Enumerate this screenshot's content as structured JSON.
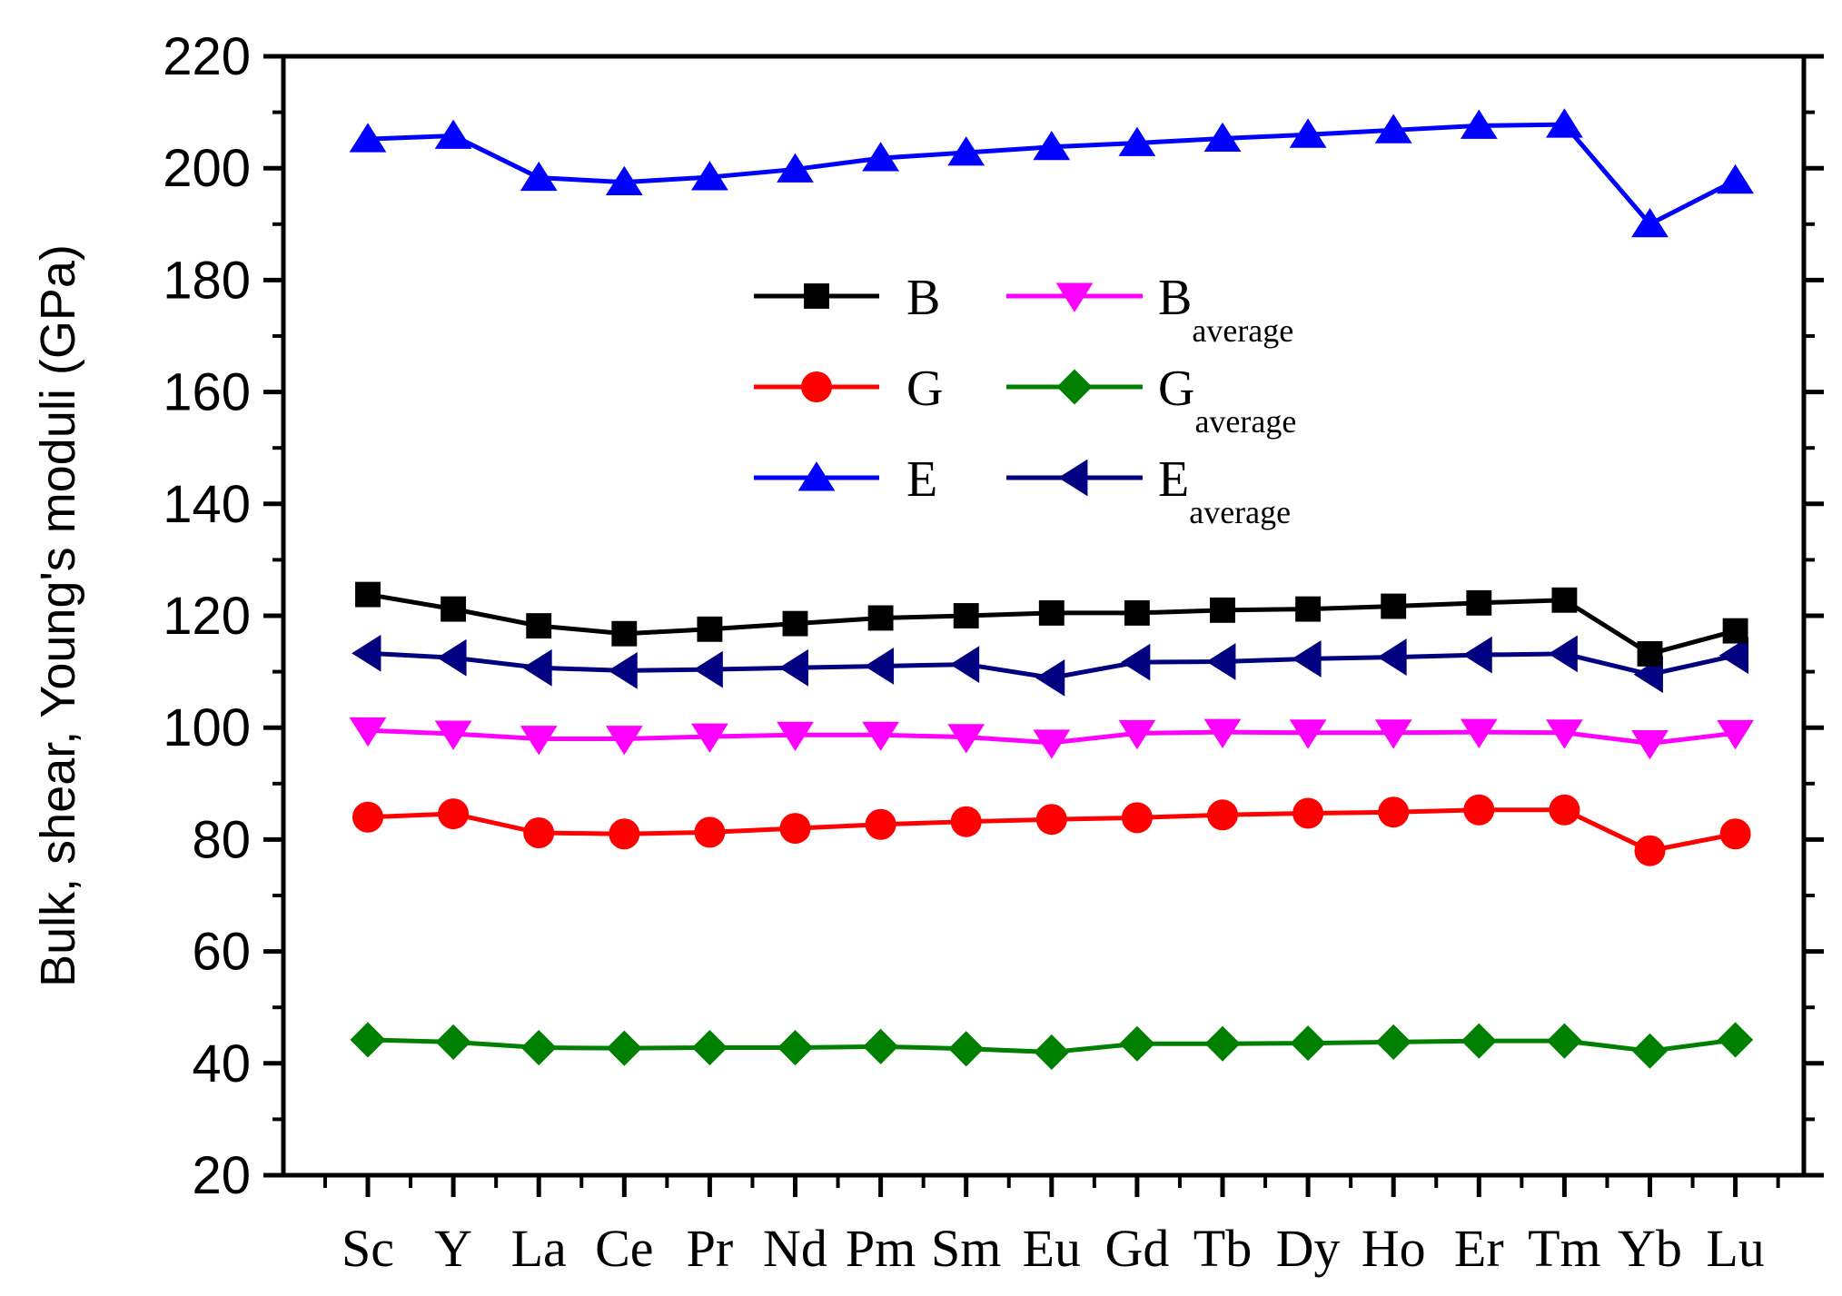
{
  "chart_data": {
    "type": "line",
    "title": "",
    "xlabel": "",
    "ylabel": "Bulk, shear, Young's moduli (GPa)",
    "ylim": [
      20,
      220
    ],
    "yticks": [
      20,
      40,
      60,
      80,
      100,
      120,
      140,
      160,
      180,
      200,
      220
    ],
    "categories": [
      "Sc",
      "Y",
      "La",
      "Ce",
      "Pr",
      "Nd",
      "Pm",
      "Sm",
      "Eu",
      "Gd",
      "Tb",
      "Dy",
      "Ho",
      "Er",
      "Tm",
      "Yb",
      "Lu"
    ],
    "legend_position": "upper-center",
    "series": [
      {
        "name": "B",
        "sub": "",
        "color": "#000000",
        "marker": "square",
        "values": [
          123.8,
          121.2,
          118.2,
          116.8,
          117.6,
          118.6,
          119.6,
          120.0,
          120.5,
          120.5,
          121.0,
          121.2,
          121.7,
          122.3,
          122.8,
          113.2,
          117.3
        ]
      },
      {
        "name": "G",
        "sub": "",
        "color": "#ff0000",
        "marker": "circle",
        "values": [
          84.0,
          84.6,
          81.2,
          81.0,
          81.3,
          82.0,
          82.7,
          83.2,
          83.6,
          83.9,
          84.4,
          84.7,
          84.9,
          85.3,
          85.3,
          78.0,
          81.0
        ]
      },
      {
        "name": "E",
        "sub": "",
        "color": "#0000ff",
        "marker": "triangle-up",
        "values": [
          205.2,
          205.8,
          198.3,
          197.5,
          198.4,
          199.8,
          201.8,
          202.8,
          203.8,
          204.5,
          205.3,
          206.0,
          206.8,
          207.6,
          207.8,
          190.0,
          197.8
        ]
      },
      {
        "name": "B",
        "sub": "average",
        "color": "#ff00ff",
        "marker": "triangle-down",
        "values": [
          99.5,
          98.9,
          98.0,
          98.0,
          98.4,
          98.7,
          98.7,
          98.3,
          97.3,
          99.0,
          99.2,
          99.1,
          99.1,
          99.2,
          99.1,
          97.2,
          99.0
        ]
      },
      {
        "name": "G",
        "sub": "average",
        "color": "#008000",
        "marker": "diamond",
        "values": [
          44.2,
          43.8,
          42.8,
          42.7,
          42.8,
          42.8,
          43.0,
          42.6,
          42.0,
          43.5,
          43.5,
          43.6,
          43.8,
          44.0,
          44.0,
          42.2,
          44.2
        ]
      },
      {
        "name": "E",
        "sub": "average",
        "color": "#000080",
        "marker": "triangle-left",
        "values": [
          113.3,
          112.5,
          110.7,
          110.2,
          110.4,
          110.7,
          111.0,
          111.3,
          108.9,
          111.7,
          111.8,
          112.3,
          112.6,
          113.0,
          113.2,
          109.5,
          112.9
        ]
      }
    ]
  }
}
